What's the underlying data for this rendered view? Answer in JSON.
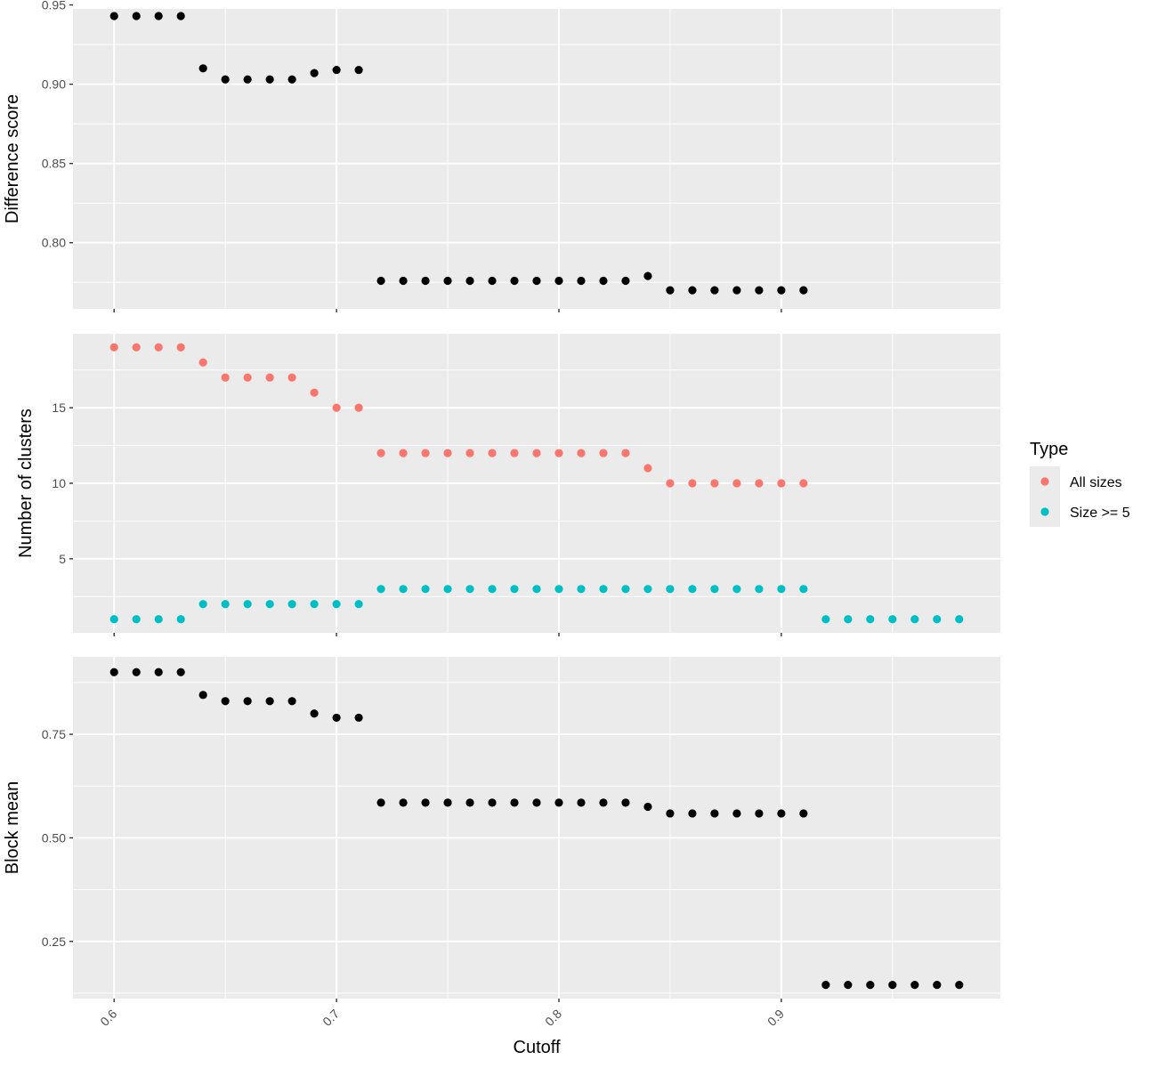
{
  "chart_data": {
    "type": "scatter",
    "xlabel": "Cutoff",
    "x_ticks": [
      "0.6",
      "0.7",
      "0.8",
      "0.9"
    ],
    "x_tick_values": [
      0.6,
      0.7,
      0.8,
      0.9
    ],
    "xlim": [
      0.5815,
      0.9985
    ],
    "grid": true,
    "colors": {
      "panel_bg": "#ebebeb",
      "grid": "#ffffff",
      "default_point": "#000000"
    },
    "legend": {
      "title": "Type",
      "placement": "right",
      "entries": [
        {
          "label": "All sizes",
          "color": "#f8766d"
        },
        {
          "label": "Size >= 5",
          "color": "#00bfc4"
        }
      ]
    },
    "panels": [
      {
        "ylabel": "Difference score",
        "ylim": [
          0.7583,
          0.9475
        ],
        "y_ticks": [
          "0.80",
          "0.85",
          "0.90",
          "0.95"
        ],
        "y_tick_values": [
          0.8,
          0.85,
          0.9,
          0.95
        ],
        "series": [
          {
            "x": [
              0.6,
              0.61,
              0.62,
              0.63,
              0.64,
              0.65,
              0.66,
              0.67,
              0.68,
              0.69,
              0.7,
              0.71,
              0.72,
              0.73,
              0.74,
              0.75,
              0.76,
              0.77,
              0.78,
              0.79,
              0.8,
              0.81,
              0.82,
              0.83,
              0.84,
              0.85,
              0.86,
              0.87,
              0.88,
              0.89,
              0.9,
              0.91
            ],
            "y": [
              0.943,
              0.943,
              0.943,
              0.943,
              0.91,
              0.903,
              0.903,
              0.903,
              0.903,
              0.907,
              0.909,
              0.909,
              0.776,
              0.776,
              0.776,
              0.776,
              0.776,
              0.776,
              0.776,
              0.776,
              0.776,
              0.776,
              0.776,
              0.776,
              0.779,
              0.77,
              0.77,
              0.77,
              0.77,
              0.77,
              0.77,
              0.77
            ]
          }
        ]
      },
      {
        "ylabel": "Number of clusters",
        "ylim": [
          0.1,
          19.9
        ],
        "y_ticks": [
          "5",
          "10",
          "15"
        ],
        "y_tick_values": [
          5,
          10,
          15
        ],
        "series": [
          {
            "name": "All sizes",
            "color": "#f8766d",
            "x": [
              0.6,
              0.61,
              0.62,
              0.63,
              0.64,
              0.65,
              0.66,
              0.67,
              0.68,
              0.69,
              0.7,
              0.71,
              0.72,
              0.73,
              0.74,
              0.75,
              0.76,
              0.77,
              0.78,
              0.79,
              0.8,
              0.81,
              0.82,
              0.83,
              0.84,
              0.85,
              0.86,
              0.87,
              0.88,
              0.89,
              0.9,
              0.91
            ],
            "y": [
              19,
              19,
              19,
              19,
              18,
              17,
              17,
              17,
              17,
              16,
              15,
              15,
              12,
              12,
              12,
              12,
              12,
              12,
              12,
              12,
              12,
              12,
              12,
              12,
              11,
              10,
              10,
              10,
              10,
              10,
              10,
              10
            ]
          },
          {
            "name": "Size >= 5",
            "color": "#00bfc4",
            "x": [
              0.6,
              0.61,
              0.62,
              0.63,
              0.64,
              0.65,
              0.66,
              0.67,
              0.68,
              0.69,
              0.7,
              0.71,
              0.72,
              0.73,
              0.74,
              0.75,
              0.76,
              0.77,
              0.78,
              0.79,
              0.8,
              0.81,
              0.82,
              0.83,
              0.84,
              0.85,
              0.86,
              0.87,
              0.88,
              0.89,
              0.9,
              0.91,
              0.92,
              0.93,
              0.94,
              0.95,
              0.96,
              0.97,
              0.98
            ],
            "y": [
              1,
              1,
              1,
              1,
              2,
              2,
              2,
              2,
              2,
              2,
              2,
              2,
              3,
              3,
              3,
              3,
              3,
              3,
              3,
              3,
              3,
              3,
              3,
              3,
              3,
              3,
              3,
              3,
              3,
              3,
              3,
              3,
              1,
              1,
              1,
              1,
              1,
              1,
              1
            ]
          }
        ]
      },
      {
        "ylabel": "Block mean",
        "ylim": [
          0.112,
          0.937
        ],
        "y_ticks": [
          "0.25",
          "0.50",
          "0.75"
        ],
        "y_tick_values": [
          0.25,
          0.5,
          0.75
        ],
        "series": [
          {
            "x": [
              0.6,
              0.61,
              0.62,
              0.63,
              0.64,
              0.65,
              0.66,
              0.67,
              0.68,
              0.69,
              0.7,
              0.71,
              0.72,
              0.73,
              0.74,
              0.75,
              0.76,
              0.77,
              0.78,
              0.79,
              0.8,
              0.81,
              0.82,
              0.83,
              0.84,
              0.85,
              0.86,
              0.87,
              0.88,
              0.89,
              0.9,
              0.91,
              0.92,
              0.93,
              0.94,
              0.95,
              0.96,
              0.97,
              0.98
            ],
            "y": [
              0.9,
              0.9,
              0.9,
              0.9,
              0.845,
              0.83,
              0.83,
              0.83,
              0.83,
              0.8,
              0.79,
              0.79,
              0.585,
              0.585,
              0.585,
              0.585,
              0.585,
              0.585,
              0.585,
              0.585,
              0.585,
              0.585,
              0.585,
              0.585,
              0.575,
              0.559,
              0.559,
              0.559,
              0.559,
              0.559,
              0.559,
              0.559,
              0.145,
              0.145,
              0.145,
              0.145,
              0.145,
              0.145,
              0.145
            ]
          }
        ]
      }
    ]
  }
}
